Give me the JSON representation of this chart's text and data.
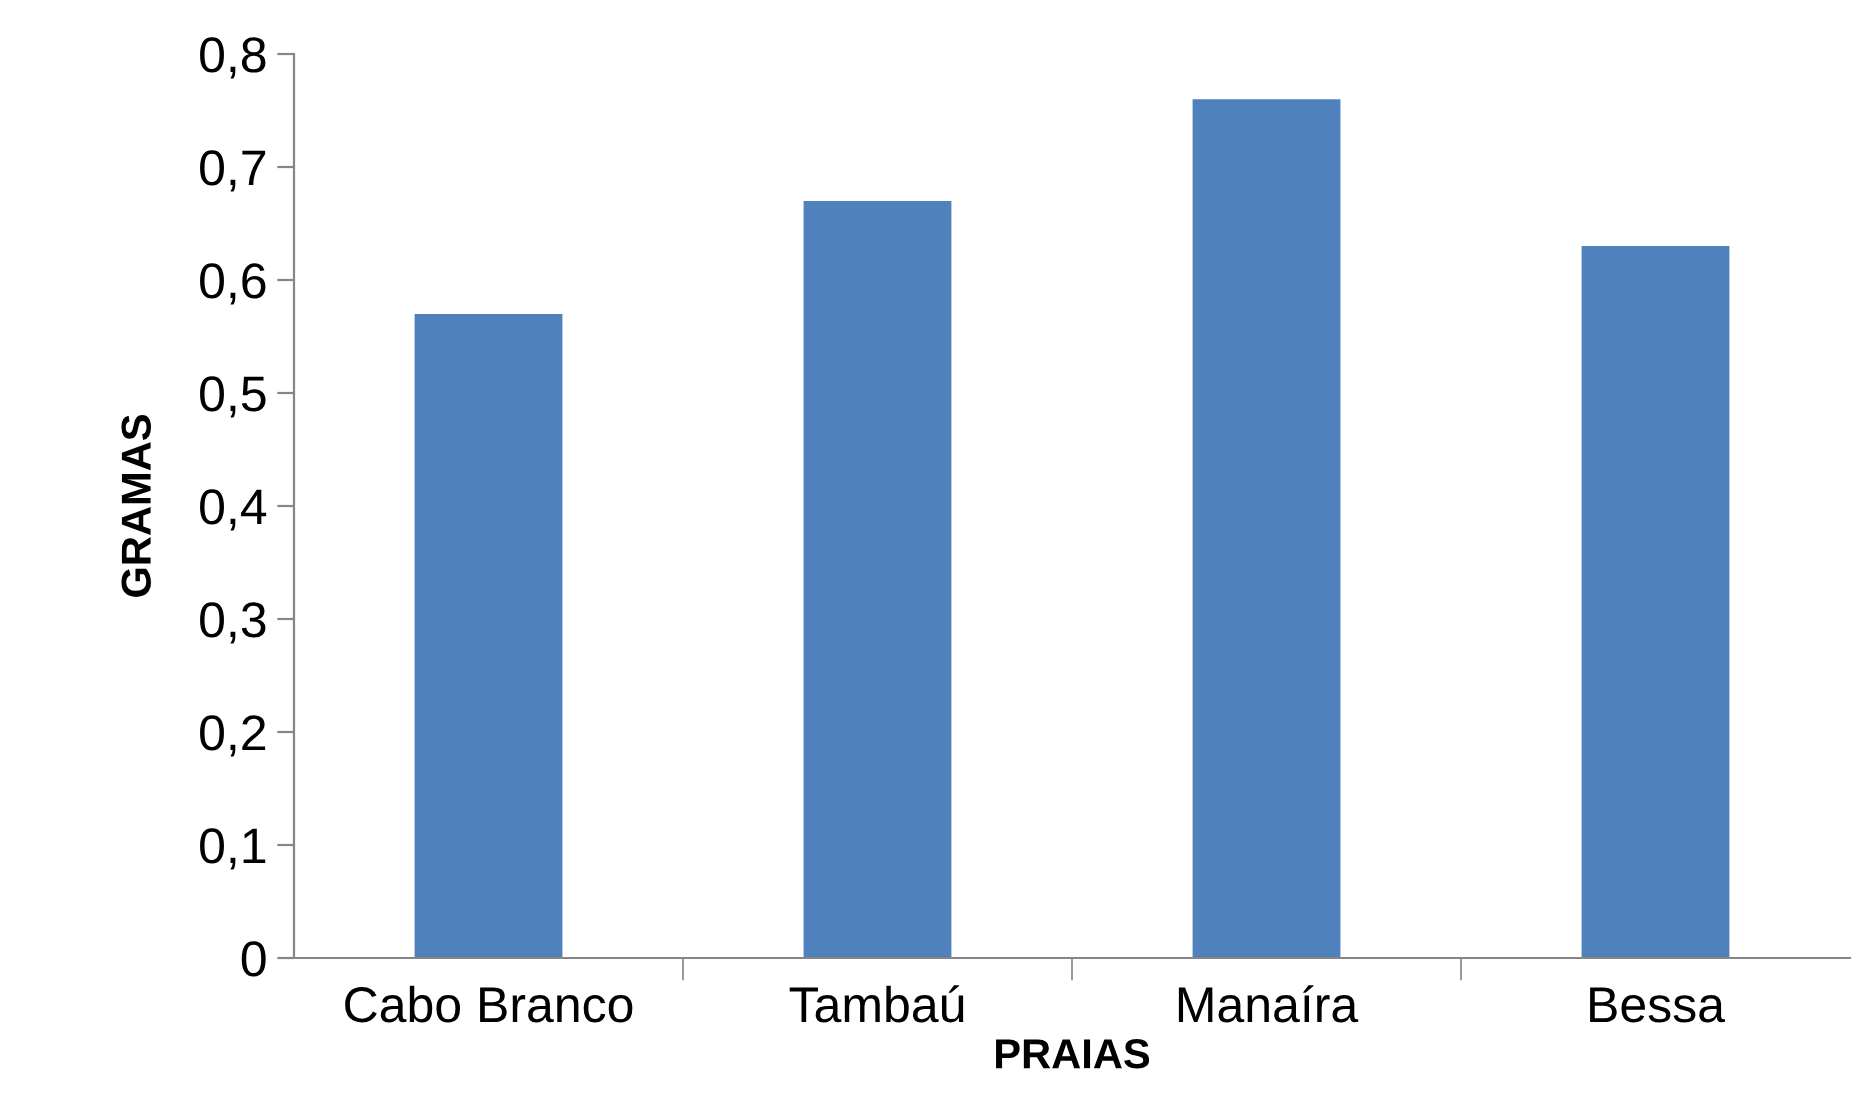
{
  "chart_data": {
    "type": "bar",
    "xlabel": "PRAIAS",
    "ylabel": "GRAMAS",
    "categories": [
      "Cabo Branco",
      "Tambaú",
      "Manaíra",
      "Bessa"
    ],
    "values": [
      0.57,
      0.67,
      0.76,
      0.63
    ],
    "color": "#4f81bd",
    "ylim": [
      0,
      0.8
    ],
    "yticks": [
      0,
      {
        "value": 0.1,
        "label": "0,1"
      },
      {
        "value": 0.2,
        "label": "0,2"
      },
      {
        "value": 0.3,
        "label": "0,3"
      },
      {
        "value": 0.4,
        "label": "0,4"
      },
      {
        "value": 0.5,
        "label": "0,5"
      },
      {
        "value": 0.6,
        "label": "0,6"
      },
      {
        "value": 0.7,
        "label": "0,7"
      },
      {
        "value": 0.8,
        "label": "0,8"
      }
    ],
    "grid": false,
    "legend": false
  }
}
